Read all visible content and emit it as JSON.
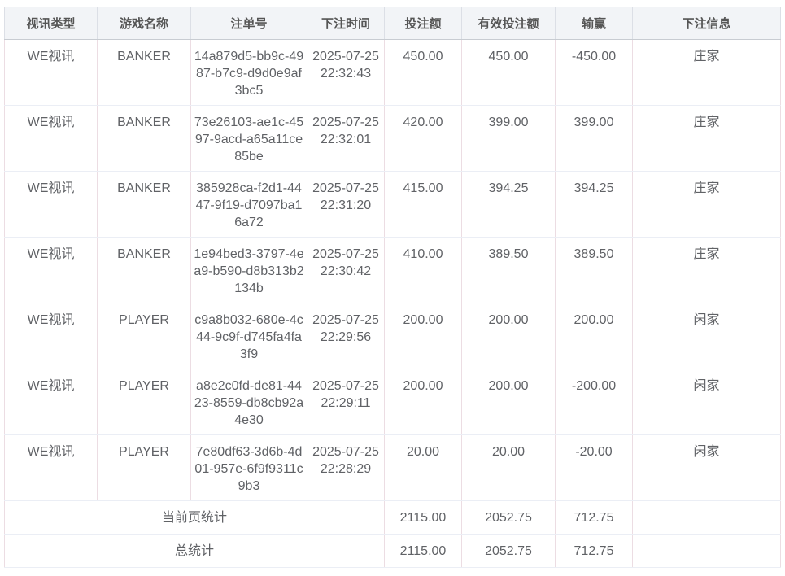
{
  "headers": [
    "视讯类型",
    "游戏名称",
    "注单号",
    "下注时间",
    "投注额",
    "有效投注额",
    "输赢",
    "下注信息"
  ],
  "rows": [
    {
      "type": "WE视讯",
      "game": "BANKER",
      "id": "14a879d5-bb9c-4987-b7c9-d9d0e9af3bc5",
      "date": "2025-07-25",
      "time": "22:32:43",
      "bet": "450.00",
      "valid": "450.00",
      "win": "-450.00",
      "info": "庄家"
    },
    {
      "type": "WE视讯",
      "game": "BANKER",
      "id": "73e26103-ae1c-4597-9acd-a65a11ce85be",
      "date": "2025-07-25",
      "time": "22:32:01",
      "bet": "420.00",
      "valid": "399.00",
      "win": "399.00",
      "info": "庄家"
    },
    {
      "type": "WE视讯",
      "game": "BANKER",
      "id": "385928ca-f2d1-4447-9f19-d7097ba16a72",
      "date": "2025-07-25",
      "time": "22:31:20",
      "bet": "415.00",
      "valid": "394.25",
      "win": "394.25",
      "info": "庄家"
    },
    {
      "type": "WE视讯",
      "game": "BANKER",
      "id": "1e94bed3-3797-4ea9-b590-d8b313b2134b",
      "date": "2025-07-25",
      "time": "22:30:42",
      "bet": "410.00",
      "valid": "389.50",
      "win": "389.50",
      "info": "庄家"
    },
    {
      "type": "WE视讯",
      "game": "PLAYER",
      "id": "c9a8b032-680e-4c44-9c9f-d745fa4fa3f9",
      "date": "2025-07-25",
      "time": "22:29:56",
      "bet": "200.00",
      "valid": "200.00",
      "win": "200.00",
      "info": "闲家"
    },
    {
      "type": "WE视讯",
      "game": "PLAYER",
      "id": "a8e2c0fd-de81-4423-8559-db8cb92a4e30",
      "date": "2025-07-25",
      "time": "22:29:11",
      "bet": "200.00",
      "valid": "200.00",
      "win": "-200.00",
      "info": "闲家"
    },
    {
      "type": "WE视讯",
      "game": "PLAYER",
      "id": "7e80df63-3d6b-4d01-957e-6f9f9311c9b3",
      "date": "2025-07-25",
      "time": "22:28:29",
      "bet": "20.00",
      "valid": "20.00",
      "win": "-20.00",
      "info": "闲家"
    }
  ],
  "summary": [
    {
      "label": "当前页统计",
      "bet": "2115.00",
      "valid": "2052.75",
      "win": "712.75"
    },
    {
      "label": "总统计",
      "bet": "2115.00",
      "valid": "2052.75",
      "win": "712.75"
    }
  ]
}
